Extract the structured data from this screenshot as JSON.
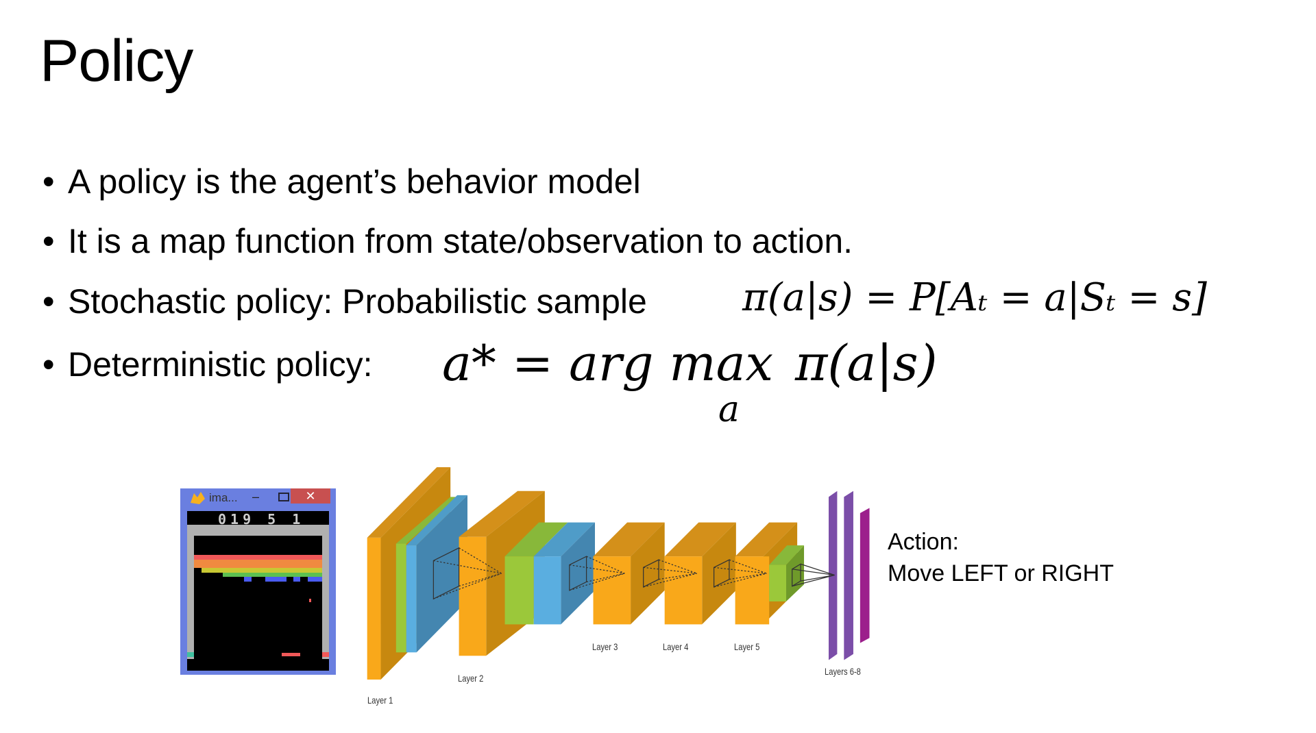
{
  "title": "Policy",
  "bullets": [
    {
      "text": "A policy is the agent’s behavior model"
    },
    {
      "text": "It is a map function from state/observation to action."
    },
    {
      "text": "Stochastic policy:  Probabilistic sample",
      "formula": "π(a|s) = P[Aₜ = a|Sₜ = s]"
    },
    {
      "text": "Deterministic policy:",
      "formula_lhs": "a* = arg max",
      "formula_sub": "a",
      "formula_rhs": "π(a|s)"
    }
  ],
  "bullet_glyph": "•",
  "game_window": {
    "title": "ima...",
    "score": "019 5 1",
    "close": "✕",
    "minimize": "–"
  },
  "network": {
    "labels": [
      "Layer 1",
      "Layer 2",
      "Layer 3",
      "Layer 4",
      "Layer 5",
      "Layers 6-8"
    ],
    "colors": {
      "orange": "#f9a81a",
      "orange_dark": "#c7880f",
      "green": "#9bc83a",
      "blue": "#5aaee0",
      "blue_dark": "#4486b0",
      "purple": "#7b4ea8",
      "magenta": "#9c1f8c"
    }
  },
  "action": {
    "line1": "Action:",
    "line2": "Move LEFT or RIGHT"
  }
}
